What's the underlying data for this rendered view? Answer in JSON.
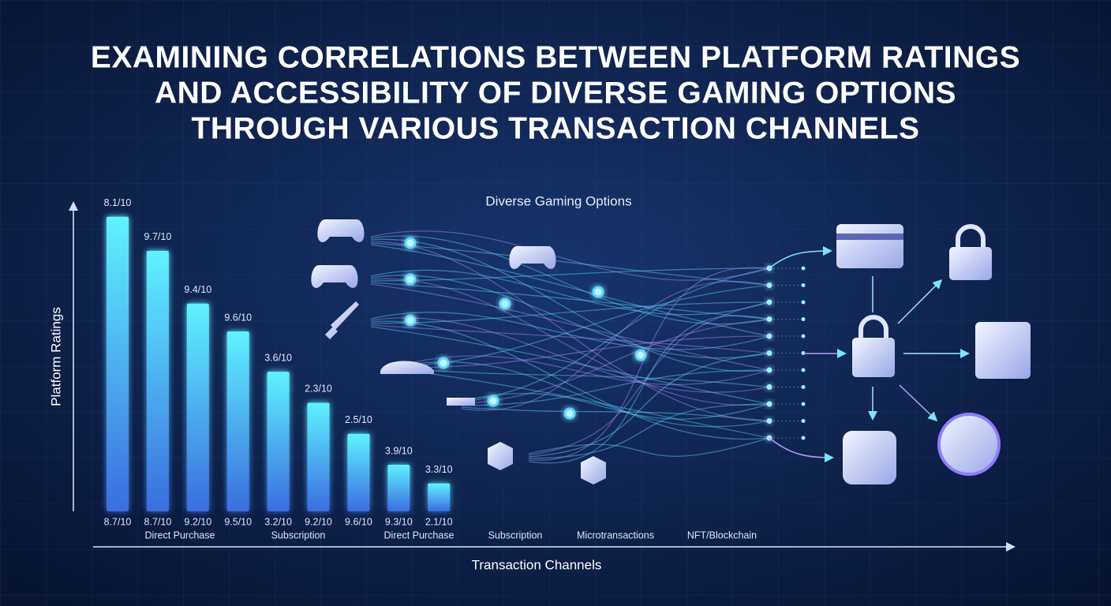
{
  "chart_data": {
    "type": "bar",
    "title": [
      "EXAMINING CORRELATIONS BETWEEN PLATFORM RATINGS",
      "AND ACCESSIBILITY OF DIVERSE GAMING OPTIONS",
      "THROUGH VARIOUS TRANSACTION CHANNELS"
    ],
    "subtitle": "Diverse Gaming Options",
    "y_label": "Platform Ratings",
    "x_label": "Transaction Channels",
    "values": [
      9.5,
      8.4,
      6.7,
      5.8,
      4.5,
      3.5,
      2.5,
      1.5,
      0.9
    ],
    "ylim": [
      0,
      10
    ],
    "top_labels": [
      "8.1/10",
      "9.7/10",
      "9.4/10",
      "9.6/10",
      "3.6/10",
      "2.3/10",
      "2.5/10",
      "3.9/10",
      "3.3/10"
    ],
    "bottom_labels": [
      "8.7/10",
      "8.7/10",
      "9.2/10",
      "9.5/10",
      "3.2/10",
      "9.2/10",
      "9.6/10",
      "9.3/10",
      "2.1/10"
    ],
    "groups": [
      "Direct Purchase",
      "Subscription",
      "Direct Purchase",
      "Subscription",
      "Microtransactions",
      "NFT/Blockchain"
    ],
    "color_top": "#5ff2ff",
    "color_bottom": "#3a6de0"
  }
}
